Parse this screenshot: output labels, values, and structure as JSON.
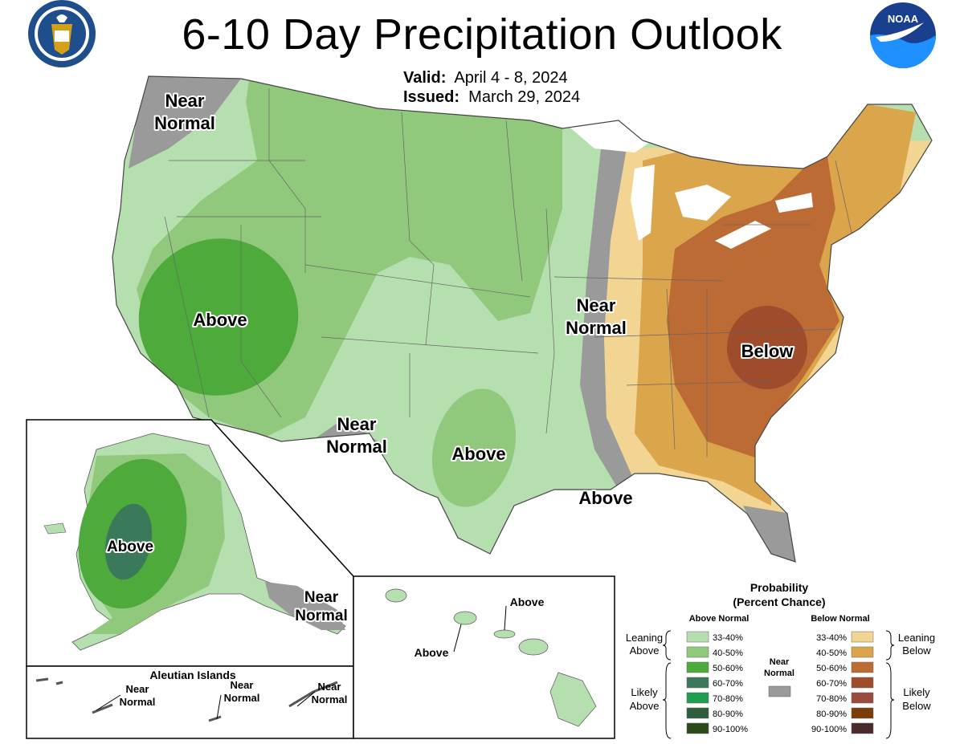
{
  "title": "6-10 Day Precipitation Outlook",
  "valid": {
    "label": "Valid:",
    "value": "April 4 - 8, 2024"
  },
  "issued": {
    "label": "Issued:",
    "value": "March 29, 2024"
  },
  "logos": {
    "commerce_seal": {
      "text": "DEPARTMENT OF COMMERCE · UNITED STATES OF AMERICA",
      "colors": [
        "#1f4e8c",
        "#ffffff",
        "#d4a017"
      ]
    },
    "noaa": {
      "text": "NOAA",
      "colors": [
        "#1a3f8f",
        "#1e90ff",
        "#ffffff"
      ]
    }
  },
  "map_labels": {
    "nw_near_normal": [
      "Near",
      "Normal"
    ],
    "west_above": "Above",
    "sw_near_normal": [
      "Near",
      "Normal"
    ],
    "tx_above": "Above",
    "ms_near_normal": [
      "Near",
      "Normal"
    ],
    "gulf_above": "Above",
    "se_below": "Below",
    "alaska_above": "Above",
    "alaska_near_normal": [
      "Near",
      "Normal"
    ],
    "aleutian_title": "Aleutian Islands",
    "aleutian_labels": [
      [
        "Near",
        "Normal"
      ],
      [
        "Near",
        "Normal"
      ],
      [
        "Near",
        "Normal"
      ]
    ],
    "hawaii_above_1": "Above",
    "hawaii_above_2": "Above"
  },
  "legend": {
    "title": [
      "Probability",
      "(Percent Chance)"
    ],
    "above_header": "Above Normal",
    "below_header": "Below Normal",
    "near_header": [
      "Near",
      "Normal"
    ],
    "leaning_above": [
      "Leaning",
      "Above"
    ],
    "likely_above": [
      "Likely",
      "Above"
    ],
    "leaning_below": [
      "Leaning",
      "Below"
    ],
    "likely_below": [
      "Likely",
      "Below"
    ],
    "above_bins": [
      {
        "label": "33-40%",
        "color": "#b5dfae"
      },
      {
        "label": "40-50%",
        "color": "#91c97c"
      },
      {
        "label": "50-60%",
        "color": "#4eaa3b"
      },
      {
        "label": "60-70%",
        "color": "#3a7a5a"
      },
      {
        "label": "70-80%",
        "color": "#1e9e4e"
      },
      {
        "label": "80-90%",
        "color": "#2f5e3e"
      },
      {
        "label": "90-100%",
        "color": "#2b4a1a"
      }
    ],
    "below_bins": [
      {
        "label": "33-40%",
        "color": "#f2d593"
      },
      {
        "label": "40-50%",
        "color": "#dba54b"
      },
      {
        "label": "50-60%",
        "color": "#bd6b35"
      },
      {
        "label": "60-70%",
        "color": "#9e4c2c"
      },
      {
        "label": "70-80%",
        "color": "#9a4b3c"
      },
      {
        "label": "80-90%",
        "color": "#7a3d08"
      },
      {
        "label": "90-100%",
        "color": "#4a2a2a"
      }
    ],
    "near_color": "#9a9a9a"
  }
}
